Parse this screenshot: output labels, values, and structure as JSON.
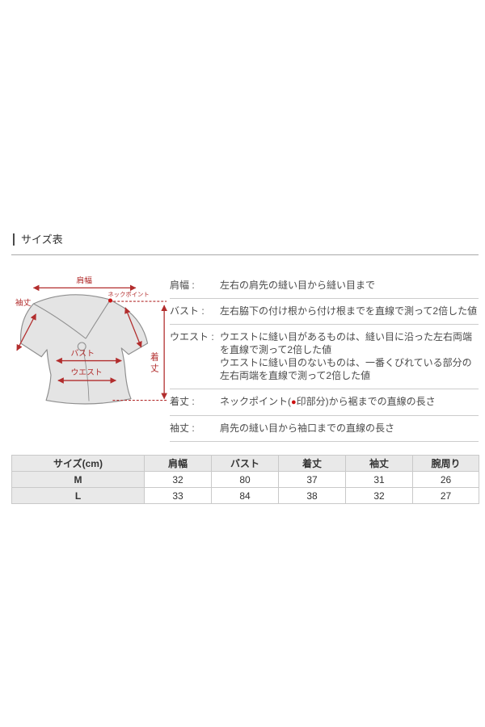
{
  "page": {
    "title": "サイズ表"
  },
  "diagram": {
    "labels": {
      "shoulder": "肩幅",
      "neck_point": "ネックポイント",
      "sleeve": "袖丈",
      "bust": "バスト",
      "waist": "ウエスト",
      "length_char1": "着",
      "length_char2": "丈"
    },
    "colors": {
      "annotation": "#b22d2d",
      "neck_dot": "#cc1111",
      "shirt_fill": "#e4e4e4",
      "shirt_stroke": "#8f8f8f"
    }
  },
  "definitions": [
    {
      "key": "shoulder-width",
      "term": "肩幅 :",
      "lines": [
        {
          "text": "左右の肩先の縫い目から縫い目まで"
        }
      ]
    },
    {
      "key": "bust",
      "term": "バスト :",
      "lines": [
        {
          "text": "左右脇下の付け根から付け根までを直線で測って2倍した値"
        }
      ]
    },
    {
      "key": "waist",
      "term": "ウエスト :",
      "lines": [
        {
          "text": "ウエストに縫い目があるものは、縫い目に沿った左右両端を直線で測って2倍した値"
        },
        {
          "text": "ウエストに縫い目のないものは、一番くびれている部分の左右両端を直線で測って2倍した値"
        }
      ]
    },
    {
      "key": "body-length",
      "term": "着丈 :",
      "lines": [
        {
          "prefix": "ネックポイント(",
          "dot": "●",
          "suffix": "印部分)から裾までの直線の長さ"
        }
      ]
    },
    {
      "key": "sleeve-length",
      "term": "袖丈 :",
      "lines": [
        {
          "text": "肩先の縫い目から袖口までの直線の長さ"
        }
      ]
    }
  ],
  "size_table": {
    "headers": [
      "サイズ(cm)",
      "肩幅",
      "バスト",
      "着丈",
      "袖丈",
      "腕周り"
    ],
    "header_bg": "#e9e9e9",
    "rows": [
      {
        "size": "M",
        "values": [
          "32",
          "80",
          "37",
          "31",
          "26"
        ]
      },
      {
        "size": "L",
        "values": [
          "33",
          "84",
          "38",
          "32",
          "27"
        ]
      }
    ]
  }
}
